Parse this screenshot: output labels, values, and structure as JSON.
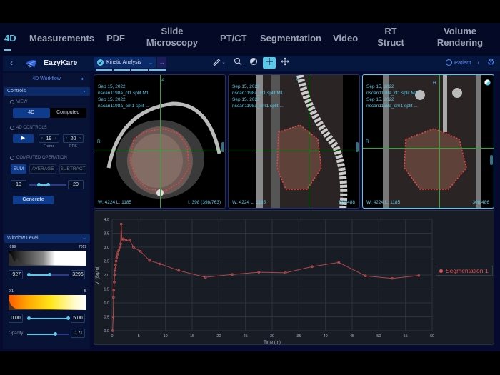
{
  "topnav": {
    "tabs": [
      {
        "label": "4D",
        "active": true
      },
      {
        "label": "Measurements"
      },
      {
        "label": "PDF"
      },
      {
        "label": "Slide Microscopy"
      },
      {
        "label": "PT/CT"
      },
      {
        "label": "Segmentation"
      },
      {
        "label": "Video"
      },
      {
        "label": "RT Struct"
      },
      {
        "label": "Volume Rendering"
      }
    ]
  },
  "header": {
    "brand": "EazyKare",
    "workflow_select": "Kinetic Analysis",
    "patient_label": "Patient",
    "tools": [
      "ruler-icon",
      "zoom-icon",
      "contrast-icon",
      "crosshair-icon",
      "pan-icon"
    ]
  },
  "sidebar": {
    "title": "4D Workflow",
    "controls_header": "Controls",
    "view_label": "VIEW",
    "view_options": [
      "4D",
      "Computed"
    ],
    "view_selected": "4D",
    "controls_4d_label": "4D CONTROLS",
    "frame_value": "19",
    "frame_label": "Frame",
    "fps_value": "20",
    "fps_label": "FPS",
    "computed_op_label": "COMPUTED OPERATION",
    "ops": [
      "SUM",
      "AVERAGE",
      "SUBTRACT"
    ],
    "op_selected": "SUM",
    "range_min": "10",
    "range_max": "20",
    "generate_label": "Generate",
    "window_level_header": "Window Level",
    "wl_scale_min": "-999",
    "wl_scale_max": "7019",
    "wl_low": "-927",
    "wl_high": "3296",
    "lut_scale_min": "0.1",
    "lut_scale_max": "5",
    "lut_low": "0.00",
    "lut_high": "5.00",
    "opacity_label": "Opacity",
    "opacity_value": "0.7"
  },
  "viewports": [
    {
      "date1": "Sep 15, 2022",
      "series1": "nscan1198a_ct1 split M1",
      "date2": "Sep 15, 2022",
      "series2": "nscan1198a_em1 split ...",
      "top_label": "A",
      "left_label": "R",
      "wl": "W: 4224  L: 1185",
      "slice": "I: 398 (398/763)"
    },
    {
      "date1": "Sep 15, 2022",
      "series1": "nscan1198a_ct1 split M1",
      "date2": "Sep 15, 2022",
      "series2": "nscan1198a_em1 split ...",
      "top_label": "H",
      "left_label": "A",
      "wl": "W: 4224  L: 1185",
      "slice": "128/488"
    },
    {
      "date1": "Sep 15, 2022",
      "series1": "nscan1198a_ct1 split M1",
      "date2": "Sep 15, 2022",
      "series2": "nscan1198a_em1 split ...",
      "top_label": "H",
      "left_label": "R",
      "wl": "W: 4224  L: 1185",
      "slice": "308/486"
    }
  ],
  "chart_data": {
    "type": "line",
    "title": "",
    "xlabel": "Time (m)",
    "ylabel": "VI (Bq/ml)",
    "xlim": [
      0,
      60
    ],
    "ylim": [
      0,
      4.0
    ],
    "xticks": [
      0,
      5,
      10,
      15,
      20,
      25,
      30,
      35,
      40,
      45,
      50,
      55,
      60
    ],
    "yticks": [
      0.0,
      0.5,
      1.0,
      1.5,
      2.0,
      2.5,
      3.0,
      3.5,
      4.0
    ],
    "grid": true,
    "legend_position": "right",
    "series": [
      {
        "name": "Segmentation 1",
        "color": "#c0504d",
        "x": [
          0.1,
          0.2,
          0.25,
          0.3,
          0.4,
          0.45,
          0.55,
          0.65,
          0.75,
          0.85,
          0.95,
          1.1,
          1.25,
          1.45,
          1.6,
          1.7,
          1.85,
          2.1,
          2.6,
          3.3,
          4.0,
          5.3,
          7.0,
          9.0,
          12.5,
          17.5,
          22.5,
          27.5,
          32.5,
          37.5,
          42.5,
          47.5,
          52.5,
          57.5
        ],
        "values": [
          0.0,
          0.5,
          1.2,
          1.45,
          1.75,
          2.0,
          2.2,
          2.35,
          2.5,
          2.62,
          2.72,
          2.8,
          2.9,
          3.0,
          3.12,
          3.83,
          3.25,
          3.3,
          3.25,
          3.25,
          3.0,
          2.85,
          2.52,
          2.4,
          2.16,
          1.92,
          2.02,
          2.1,
          2.08,
          2.3,
          2.45,
          1.97,
          1.88,
          1.98
        ]
      }
    ]
  }
}
